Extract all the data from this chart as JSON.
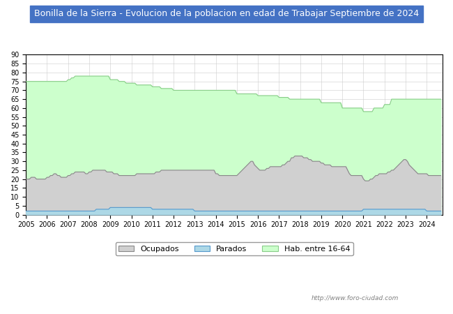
{
  "title": "Bonilla de la Sierra - Evolucion de la poblacion en edad de Trabajar Septiembre de 2024",
  "title_bg": "#4472c4",
  "title_color": "white",
  "ylim": [
    0,
    90
  ],
  "yticks": [
    0,
    5,
    10,
    15,
    20,
    25,
    30,
    35,
    40,
    45,
    50,
    55,
    60,
    65,
    70,
    75,
    80,
    85,
    90
  ],
  "legend_labels": [
    "Ocupados",
    "Parados",
    "Hab. entre 16-64"
  ],
  "ocupados_fill": "#d0d0d0",
  "ocupados_line": "#888888",
  "parados_fill": "#add8e6",
  "parados_line": "#5599cc",
  "hab_fill": "#ccffcc",
  "hab_line": "#88cc88",
  "watermark": "http://www.foro-ciudad.com"
}
